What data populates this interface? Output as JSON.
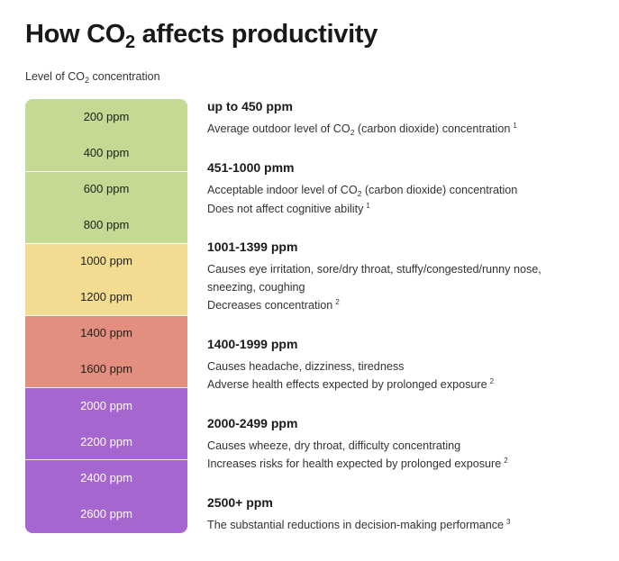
{
  "title": {
    "prefix": "How CO",
    "sub": "2",
    "suffix": " affects productivity"
  },
  "subtitle": {
    "prefix": "Level of CO",
    "sub": "2",
    "suffix": "  concentration"
  },
  "scale": {
    "bands": [
      {
        "color": "#c3d994"
      },
      {
        "color": "#c3d994"
      },
      {
        "color": "#f3dc92"
      },
      {
        "color": "#e38f80"
      },
      {
        "color": "#a566cf"
      },
      {
        "color": "#a566cf"
      }
    ],
    "ticks": [
      {
        "label": "200 ppm",
        "text_color": "#1f1f1f"
      },
      {
        "label": "400 ppm",
        "text_color": "#1f1f1f"
      },
      {
        "label": "600 ppm",
        "text_color": "#1f1f1f"
      },
      {
        "label": "800 ppm",
        "text_color": "#1f1f1f"
      },
      {
        "label": "1000 ppm",
        "text_color": "#1f1f1f"
      },
      {
        "label": "1200 ppm",
        "text_color": "#1f1f1f"
      },
      {
        "label": "1400 ppm",
        "text_color": "#1f1f1f"
      },
      {
        "label": "1600 ppm",
        "text_color": "#1f1f1f"
      },
      {
        "label": "2000 ppm",
        "text_color": "#ffffff"
      },
      {
        "label": "2200 ppm",
        "text_color": "#ffffff"
      },
      {
        "label": "2400 ppm",
        "text_color": "#ffffff"
      },
      {
        "label": "2600 ppm",
        "text_color": "#ffffff"
      }
    ]
  },
  "descriptions": [
    {
      "heading": "up to 450 ppm",
      "lines": [
        {
          "pre": "Average outdoor level of CO",
          "sub": "2",
          "post": " (carbon dioxide) concentration",
          "ref": "1"
        }
      ]
    },
    {
      "heading": "451-1000 pmm",
      "lines": [
        {
          "pre": "Acceptable indoor level of CO",
          "sub": "2",
          "post": " (carbon dioxide) concentration",
          "ref": ""
        },
        {
          "pre": "Does not affect cognitive ability",
          "sub": "",
          "post": "",
          "ref": "1"
        }
      ]
    },
    {
      "heading": "1001-1399 ppm",
      "lines": [
        {
          "pre": "Causes eye irritation, sore/dry throat, stuffy/congested/runny nose,",
          "sub": "",
          "post": "",
          "ref": ""
        },
        {
          "pre": "sneezing, coughing",
          "sub": "",
          "post": "",
          "ref": ""
        },
        {
          "pre": "Decreases concentration",
          "sub": "",
          "post": "",
          "ref": "2"
        }
      ]
    },
    {
      "heading": "1400-1999 ppm",
      "lines": [
        {
          "pre": "Causes headache, dizziness, tiredness",
          "sub": "",
          "post": "",
          "ref": ""
        },
        {
          "pre": "Adverse health effects expected by prolonged exposure",
          "sub": "",
          "post": "",
          "ref": "2"
        }
      ]
    },
    {
      "heading": "2000-2499 ppm",
      "lines": [
        {
          "pre": "Causes wheeze, dry throat, difficulty concentrating",
          "sub": "",
          "post": "",
          "ref": ""
        },
        {
          "pre": "Increases risks for health expected by prolonged exposure",
          "sub": "",
          "post": "",
          "ref": "2"
        }
      ]
    },
    {
      "heading": "2500+ ppm",
      "lines": [
        {
          "pre": "The substantial reductions in decision-making performance",
          "sub": "",
          "post": "",
          "ref": "3"
        }
      ]
    }
  ]
}
